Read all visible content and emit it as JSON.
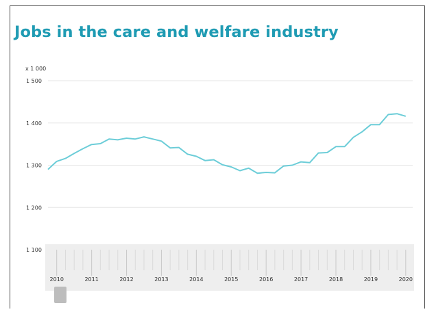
{
  "title": "Jobs in the care and welfare industry",
  "colors": {
    "title": "#1f9bb3",
    "line": "#6ccdd8",
    "grid": "#e6e6e6",
    "navigator_bg": "#eeeeee",
    "frame": "#4a4a4a"
  },
  "chart_data": {
    "type": "line",
    "title": "Jobs in the care and welfare industry",
    "ylabel": "x 1 000",
    "xlabel": "",
    "ylim": [
      1100,
      1500
    ],
    "xlim": [
      2010,
      2020.2
    ],
    "yticks": [
      1100,
      1200,
      1300,
      1400,
      1500
    ],
    "ytick_labels": [
      "1 100",
      "1 200",
      "1 300",
      "1 400",
      "1 500"
    ],
    "xticks": [
      2010,
      2011,
      2012,
      2013,
      2014,
      2015,
      2016,
      2017,
      2018,
      2019,
      2020
    ],
    "xtick_labels": [
      "2010",
      "2011",
      "2012",
      "2013",
      "2014",
      "2015",
      "2016",
      "2017",
      "2018",
      "2019",
      "2020"
    ],
    "grid": true,
    "series": [
      {
        "x": [
          2009.75,
          2010.0,
          2010.25,
          2010.5,
          2010.75,
          2011.0,
          2011.25,
          2011.5,
          2011.75,
          2012.0,
          2012.25,
          2012.5,
          2012.75,
          2013.0,
          2013.25,
          2013.5,
          2013.75,
          2014.0,
          2014.25,
          2014.5,
          2014.75,
          2015.0,
          2015.25,
          2015.5,
          2015.75,
          2016.0,
          2016.25,
          2016.5,
          2016.75,
          2017.0,
          2017.25,
          2017.5,
          2017.75,
          2018.0,
          2018.25,
          2018.5,
          2018.75,
          2019.0,
          2019.25,
          2019.5,
          2019.75,
          2020.0
        ],
        "y": [
          1290,
          1309,
          1316,
          1328,
          1339,
          1349,
          1351,
          1362,
          1360,
          1364,
          1362,
          1367,
          1362,
          1357,
          1341,
          1342,
          1326,
          1321,
          1311,
          1313,
          1301,
          1296,
          1287,
          1293,
          1281,
          1283,
          1282,
          1298,
          1300,
          1308,
          1306,
          1329,
          1330,
          1344,
          1344,
          1366,
          1379,
          1396,
          1396,
          1420,
          1422,
          1416
        ]
      }
    ]
  }
}
